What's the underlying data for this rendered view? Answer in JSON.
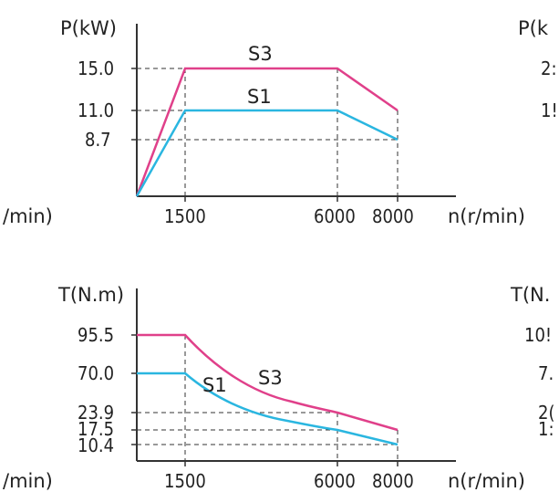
{
  "chart_data": [
    {
      "type": "line",
      "ylabel": "P(kW)",
      "xlabel": "n(r/min)",
      "clipped_left_label": "/min)",
      "clipped_right_label": "P(k",
      "clipped_right_ticks": [
        "2:",
        "1!"
      ],
      "x_ticks": [
        "1500",
        "6000",
        "8000"
      ],
      "y_ticks": [
        "15.0",
        "11.0",
        "8.7"
      ],
      "colors": {
        "S3": "#e0408a",
        "S1": "#2ab6e0"
      },
      "series": [
        {
          "name": "S3",
          "x": [
            0,
            1500,
            6000,
            8000
          ],
          "y": [
            0,
            15.0,
            15.0,
            11.0
          ]
        },
        {
          "name": "S1",
          "x": [
            0,
            1500,
            6000,
            8000
          ],
          "y": [
            0,
            11.0,
            11.0,
            8.7
          ]
        }
      ]
    },
    {
      "type": "line",
      "ylabel": "T(N.m)",
      "xlabel": "n(r/min)",
      "clipped_left_label": "/min)",
      "clipped_right_label": "T(N.",
      "clipped_right_ticks": [
        "10!",
        "7.",
        "2(",
        "1:"
      ],
      "x_ticks": [
        "1500",
        "6000",
        "8000"
      ],
      "y_ticks": [
        "95.5",
        "70.0",
        "23.9",
        "17.5",
        "10.4"
      ],
      "colors": {
        "S3": "#e0408a",
        "S1": "#2ab6e0"
      },
      "series": [
        {
          "name": "S3",
          "x": [
            0,
            1500,
            2000,
            3000,
            4000,
            5000,
            6000,
            7000,
            8000
          ],
          "y": [
            95.5,
            95.5,
            71.6,
            47.8,
            35.8,
            28.6,
            23.9,
            20.5,
            13.1
          ]
        },
        {
          "name": "S1",
          "x": [
            0,
            1500,
            2000,
            3000,
            4000,
            5000,
            6000,
            7000,
            8000
          ],
          "y": [
            70.0,
            70.0,
            52.5,
            35.0,
            26.3,
            21.0,
            17.5,
            15.0,
            10.4
          ]
        }
      ]
    }
  ]
}
